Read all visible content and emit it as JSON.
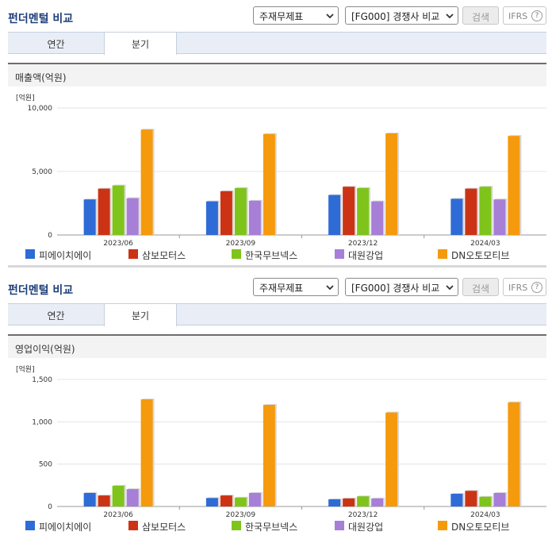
{
  "header": {
    "title": "펀더멘털 비교",
    "select_type": "주재무제표",
    "select_group": "[FG000] 경쟁사 비교",
    "search_label": "검색",
    "ifrs_label": "IFRS",
    "help_glyph": "?"
  },
  "tabs": [
    "연간",
    "분기"
  ],
  "colors": {
    "피에이치에이": "#2e6bd6",
    "삼보모터스": "#cc3314",
    "한국무브넥스": "#7fc41a",
    "대원강업": "#a77fd6",
    "DN오토모티브": "#f59a0c"
  },
  "sections": [
    {
      "metric_label": "매출액(억원)",
      "legend": [
        "피에이치에이",
        "삼보모터스",
        "한국무브넥스",
        "대원강업",
        "DN오토모티브"
      ],
      "chart_data": {
        "type": "bar",
        "unit_label": "[억원]",
        "categories": [
          "2023/06",
          "2023/09",
          "2023/12",
          "2024/03"
        ],
        "y_ticks": [
          "0",
          "5,000",
          "10,000"
        ],
        "ylim": [
          0,
          10000
        ],
        "series": [
          {
            "name": "피에이치에이",
            "values": [
              2800,
              2650,
              3150,
              2850
            ]
          },
          {
            "name": "삼보모터스",
            "values": [
              3650,
              3450,
              3800,
              3650
            ]
          },
          {
            "name": "한국무브넥스",
            "values": [
              3900,
              3700,
              3700,
              3800
            ]
          },
          {
            "name": "대원강업",
            "values": [
              2900,
              2700,
              2650,
              2800
            ]
          },
          {
            "name": "DN오토모티브",
            "values": [
              8300,
              7950,
              8000,
              7800
            ]
          }
        ]
      }
    },
    {
      "metric_label": "영업이익(억원)",
      "legend": [
        "피에이치에이",
        "삼보모터스",
        "한국무브넥스",
        "대원강업",
        "DN오토모티브"
      ],
      "chart_data": {
        "type": "bar",
        "unit_label": "[억원]",
        "categories": [
          "2023/06",
          "2023/09",
          "2023/12",
          "2024/03"
        ],
        "y_ticks": [
          "0",
          "500",
          "1,000",
          "1,500"
        ],
        "ylim": [
          0,
          1500
        ],
        "series": [
          {
            "name": "피에이치에이",
            "values": [
              160,
              100,
              85,
              150
            ]
          },
          {
            "name": "삼보모터스",
            "values": [
              130,
              130,
              95,
              185
            ]
          },
          {
            "name": "한국무브넥스",
            "values": [
              245,
              105,
              120,
              115
            ]
          },
          {
            "name": "대원강업",
            "values": [
              205,
              160,
              95,
              160
            ]
          },
          {
            "name": "DN오토모티브",
            "values": [
              1265,
              1200,
              1110,
              1230
            ]
          }
        ]
      }
    }
  ]
}
